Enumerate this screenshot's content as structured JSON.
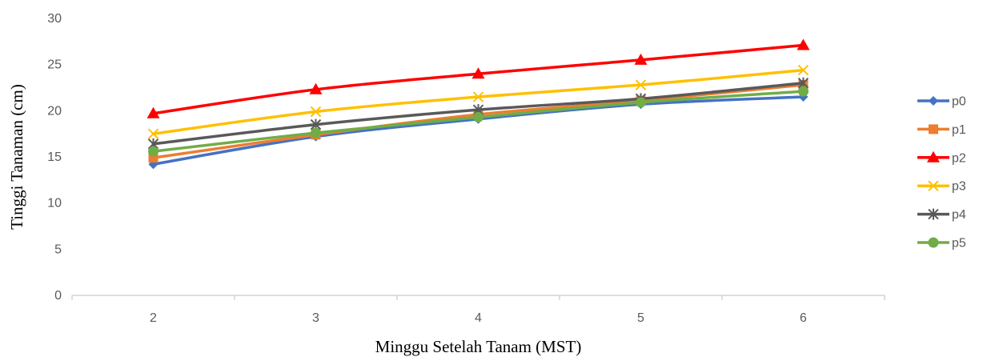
{
  "chart_data": {
    "type": "line",
    "title": "",
    "xlabel": "Minggu Setelah Tanam (MST)",
    "ylabel": "Tinggi Tanaman (cm)",
    "x": [
      2,
      3,
      4,
      5,
      6
    ],
    "ylim": [
      0,
      30
    ],
    "yticks": [
      0,
      5,
      10,
      15,
      20,
      25,
      30
    ],
    "grid": false,
    "legend_position": "right",
    "series": [
      {
        "name": "p0",
        "values": [
          14.2,
          17.2,
          19.1,
          20.7,
          21.5
        ],
        "color": "#4472C4",
        "marker": "diamond"
      },
      {
        "name": "p1",
        "values": [
          14.9,
          17.4,
          19.6,
          21.1,
          22.8
        ],
        "color": "#ED7D31",
        "marker": "square"
      },
      {
        "name": "p2",
        "values": [
          19.7,
          22.3,
          24.0,
          25.5,
          27.1
        ],
        "color": "#FF0000",
        "marker": "triangle"
      },
      {
        "name": "p3",
        "values": [
          17.5,
          19.9,
          21.5,
          22.8,
          24.4
        ],
        "color": "#FFC000",
        "marker": "x"
      },
      {
        "name": "p4",
        "values": [
          16.4,
          18.5,
          20.1,
          21.3,
          23.0
        ],
        "color": "#595959",
        "marker": "star"
      },
      {
        "name": "p5",
        "values": [
          15.6,
          17.6,
          19.3,
          20.9,
          22.1
        ],
        "color": "#70AD47",
        "marker": "circle"
      }
    ]
  }
}
